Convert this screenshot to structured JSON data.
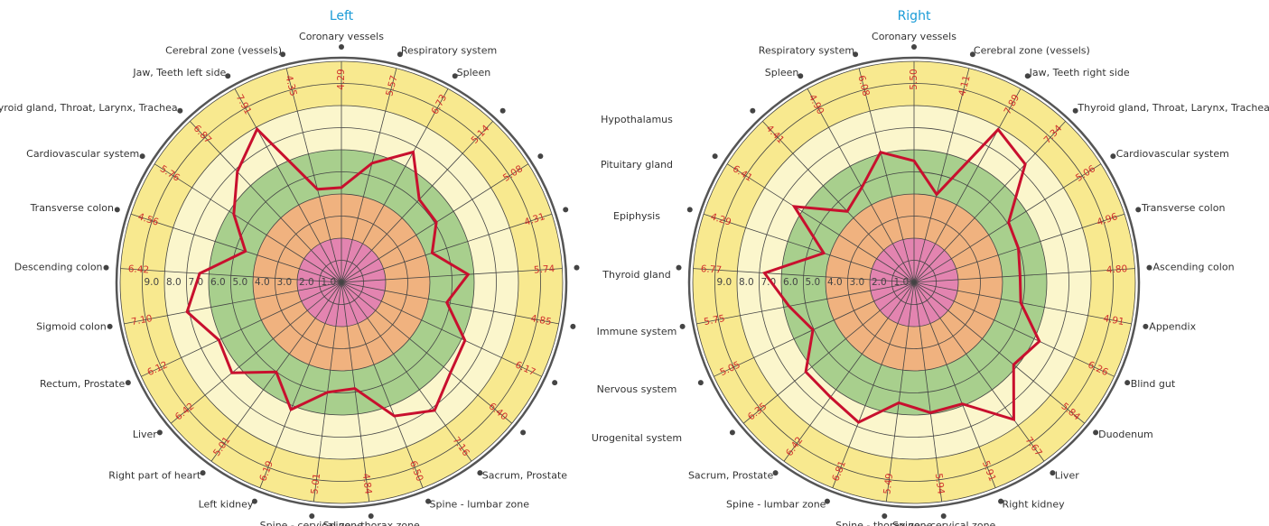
{
  "chart_data": [
    {
      "type": "radar",
      "title": "Left",
      "categories": [
        "Coronary vessels",
        "Respiratory system",
        "Spleen",
        null,
        null,
        null,
        null,
        null,
        null,
        null,
        "Sacrum, Prostate",
        "Spine - lumbar zone",
        "Spine - thorax zone",
        "Spine - cervical zone",
        "Left kidney",
        "Right part of heart",
        "Liver",
        "Rectum, Prostate",
        "Sigmoid colon",
        "Descending colon",
        "Transverse colon",
        "Cardiovascular system",
        "Thyroid gland, Throat, Larynx, Trachea",
        "Jaw, Teeth left side",
        "Cerebral zone (vessels)"
      ],
      "values": [
        4.29,
        5.57,
        6.73,
        5.14,
        5.08,
        4.31,
        5.74,
        4.85,
        6.17,
        6.4,
        7.16,
        6.5,
        4.84,
        5.01,
        6.19,
        5.01,
        6.42,
        6.12,
        7.1,
        6.42,
        4.56,
        5.76,
        6.87,
        7.91,
        4.35
      ],
      "value_labels": [
        "4.29",
        "5.57",
        "6.73",
        "5.14",
        "5.08",
        "4.31",
        "5.74",
        "4.85",
        "6.17",
        "6.40",
        "7.16",
        "6.50",
        "4.84",
        "5.01",
        "6.19",
        "5.01",
        "6.42",
        "6.12",
        "7.10",
        "6.42",
        "4.56",
        "5.76",
        "6.87",
        "7.91",
        "4.35"
      ],
      "rlim": [
        0,
        10
      ],
      "rticks": [
        {
          "value": 1,
          "label": "1.0"
        },
        {
          "value": 2,
          "label": "2.0"
        },
        {
          "value": 3,
          "label": "3.0"
        },
        {
          "value": 4,
          "label": "4.0"
        },
        {
          "value": 5,
          "label": "5.0"
        },
        {
          "value": 6,
          "label": "6.0"
        },
        {
          "value": 7,
          "label": "7.0"
        },
        {
          "value": 8,
          "label": "8.0"
        },
        {
          "value": 9,
          "label": "9.0"
        }
      ],
      "color": "#c8102e",
      "zones": [
        {
          "to": 10,
          "color": "#f8e98f"
        },
        {
          "to": 8,
          "color": "#fbf6cc"
        },
        {
          "to": 6,
          "color": "#a8cf8d"
        },
        {
          "to": 4,
          "color": "#f0b27f"
        },
        {
          "to": 2,
          "color": "#e384b0"
        }
      ]
    },
    {
      "type": "radar",
      "title": "Right",
      "categories": [
        "Coronary vessels",
        "Cerebral zone (vessels)",
        "Jaw, Teeth right side",
        "Thyroid gland, Throat, Larynx, Trachea",
        "Cardiovascular system",
        "Transverse colon",
        "Ascending colon",
        "Appendix",
        "Blind gut",
        "Duodenum",
        "Liver",
        "Right kidney",
        "Spine - cervical zone",
        "Spine - thorax zone",
        "Spine - lumbar zone",
        "Sacrum, Prostate",
        null,
        null,
        null,
        null,
        null,
        null,
        null,
        "Spleen",
        "Respiratory system"
      ],
      "values": [
        5.5,
        4.11,
        7.89,
        7.34,
        5.06,
        4.96,
        4.8,
        4.91,
        6.26,
        5.84,
        7.67,
        5.91,
        5.94,
        5.49,
        6.81,
        6.42,
        6.35,
        5.05,
        5.75,
        6.77,
        4.29,
        6.41,
        4.41,
        4.9,
        6.08
      ],
      "value_labels": [
        "5.50",
        "4.11",
        "7.89",
        "7.34",
        "5.06",
        "4.96",
        "4.80",
        "4.91",
        "6.26",
        "5.84",
        "7.67",
        "5.91",
        "5.94",
        "5.49",
        "6.81",
        "6.42",
        "6.35",
        "5.05",
        "5.75",
        "6.77",
        "4.29",
        "6.41",
        "4.41",
        "4.90",
        "6.08"
      ],
      "rlim": [
        0,
        10
      ],
      "rticks": [
        {
          "value": 1,
          "label": "1.0"
        },
        {
          "value": 2,
          "label": "2.0"
        },
        {
          "value": 3,
          "label": "3.0"
        },
        {
          "value": 4,
          "label": "4.0"
        },
        {
          "value": 5,
          "label": "5.0"
        },
        {
          "value": 6,
          "label": "6.0"
        },
        {
          "value": 7,
          "label": "7.0"
        },
        {
          "value": 8,
          "label": "8.0"
        },
        {
          "value": 9,
          "label": "9.0"
        }
      ],
      "color": "#c8102e",
      "zones": [
        {
          "to": 10,
          "color": "#f8e98f"
        },
        {
          "to": 8,
          "color": "#fbf6cc"
        },
        {
          "to": 6,
          "color": "#a8cf8d"
        },
        {
          "to": 4,
          "color": "#f0b27f"
        },
        {
          "to": 2,
          "color": "#e384b0"
        }
      ]
    }
  ],
  "middle_labels": [
    "Hypothalamus",
    "Pituitary gland",
    "Epiphysis",
    "Thyroid gland",
    "Immune system",
    "Nervous system",
    "Urogenital system"
  ]
}
